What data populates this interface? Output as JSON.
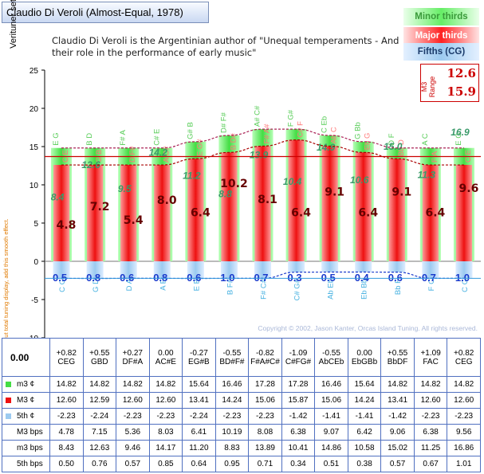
{
  "title": "Claudio Di Veroli (Almost-Equal, 1978)",
  "subtitle": "Claudio Di Veroli is the Argentinian author of \"Unequal temperaments - And their role in the performance of early music\"",
  "legend": {
    "minor": "Minor thirds",
    "major": "Major thirds",
    "fifths": "Fifths (CG)"
  },
  "range_box": {
    "label": "M3 Range",
    "v1": "12.6",
    "v2": "15.9"
  },
  "copyright": "Copyright © 2002, Jason Kanter, Orcas Island Tuning. All rights reserved.",
  "side_note": "<-- To zoom out total tuning display, add this smooth effect.",
  "total_value": "0.00",
  "colors": {
    "minor": "#44dd44",
    "major": "#ee1111",
    "fifths": "#9ccaf0",
    "refline": "#cc0000",
    "fifths_line": "#3399dd"
  },
  "chart_data": {
    "type": "bar",
    "ylabel": "Verituner set",
    "ylim": [
      -10,
      25
    ],
    "yticks": [
      -10,
      -5,
      0,
      5,
      10,
      15,
      20,
      25
    ],
    "reference_line": 13.7,
    "m3_triad_labels": [
      "E G",
      "B D",
      "F# A",
      "C# E",
      "G# B",
      "D# F#",
      "A# C#",
      "F G#",
      "C Eb",
      "G Bb",
      "D F",
      "A C",
      "E G"
    ],
    "M3_triad_labels": [
      "C E",
      "G B",
      "D F#",
      "A C#",
      "E G#",
      "B D#",
      "F# A#",
      "C# F",
      "Ab C",
      "Eb G",
      "Bb D",
      "F A",
      "C E"
    ],
    "fifth_labels": [
      "C G",
      "G D",
      "D A",
      "A E",
      "E B",
      "B F#",
      "F# C#",
      "C# G#",
      "Ab Eb",
      "Eb Bb",
      "Bb F",
      "F C",
      "C G"
    ],
    "series": [
      {
        "name": "m3 ¢",
        "values": [
          14.82,
          14.82,
          14.82,
          14.82,
          15.64,
          16.46,
          17.28,
          17.28,
          16.46,
          15.64,
          14.82,
          14.82,
          14.82
        ]
      },
      {
        "name": "M3 ¢",
        "values": [
          12.6,
          12.59,
          12.6,
          12.6,
          13.41,
          14.24,
          15.06,
          15.87,
          15.06,
          14.24,
          13.41,
          12.6,
          12.6
        ]
      },
      {
        "name": "5th ¢",
        "values": [
          -2.23,
          -2.24,
          -2.23,
          -2.23,
          -2.24,
          -2.23,
          -2.23,
          -1.42,
          -1.41,
          -1.41,
          -1.42,
          -2.23,
          -2.23
        ]
      }
    ],
    "m3_bar_labels": [
      "8.4",
      "12.6",
      "9.5",
      "14.2",
      "11.2",
      "8.8",
      "13.9",
      "10.4",
      "14.9",
      "10.6",
      "15.0",
      "11.3",
      "16.9"
    ],
    "M3_bar_labels": [
      "4.8",
      "7.2",
      "5.4",
      "8.0",
      "6.4",
      "10.2",
      "8.1",
      "6.4",
      "9.1",
      "6.4",
      "9.1",
      "6.4",
      "9.6"
    ],
    "fifth_bar_labels": [
      "0.5",
      "0.8",
      "0.6",
      "0.8",
      "0.6",
      "1.0",
      "0.7",
      "0.3",
      "0.5",
      "0.4",
      "0.6",
      "0.7",
      "1.0"
    ]
  },
  "table": {
    "header_row": [
      {
        "offset": "+0.82",
        "name": "CEG"
      },
      {
        "offset": "+0.55",
        "name": "GBD"
      },
      {
        "offset": "+0.27",
        "name": "DF#A"
      },
      {
        "offset": "0.00",
        "name": "AC#E"
      },
      {
        "offset": "-0.27",
        "name": "EG#B"
      },
      {
        "offset": "-0.55",
        "name": "BD#F#"
      },
      {
        "offset": "-0.82",
        "name": "F#A#C#"
      },
      {
        "offset": "-1.09",
        "name": "C#FG#"
      },
      {
        "offset": "-0.55",
        "name": "AbCEb"
      },
      {
        "offset": "0.00",
        "name": "EbGBb"
      },
      {
        "offset": "+0.55",
        "name": "BbDF"
      },
      {
        "offset": "+1.09",
        "name": "FAC"
      },
      {
        "offset": "+0.82",
        "name": "CEG"
      }
    ],
    "rows": [
      {
        "label": "m3 ¢",
        "swatch": "#44dd44",
        "values": [
          "14.82",
          "14.82",
          "14.82",
          "14.82",
          "15.64",
          "16.46",
          "17.28",
          "17.28",
          "16.46",
          "15.64",
          "14.82",
          "14.82",
          "14.82"
        ]
      },
      {
        "label": "M3 ¢",
        "swatch": "#ee1111",
        "values": [
          "12.60",
          "12.59",
          "12.60",
          "12.60",
          "13.41",
          "14.24",
          "15.06",
          "15.87",
          "15.06",
          "14.24",
          "13.41",
          "12.60",
          "12.60"
        ]
      },
      {
        "label": "5th ¢",
        "swatch": "#9ccaf0",
        "values": [
          "-2.23",
          "-2.24",
          "-2.23",
          "-2.23",
          "-2.24",
          "-2.23",
          "-2.23",
          "-1.42",
          "-1.41",
          "-1.41",
          "-1.42",
          "-2.23",
          "-2.23"
        ]
      },
      {
        "label": "M3 bps",
        "swatch": "",
        "values": [
          "4.78",
          "7.15",
          "5.36",
          "8.03",
          "6.41",
          "10.19",
          "8.08",
          "6.38",
          "9.07",
          "6.42",
          "9.06",
          "6.38",
          "9.56"
        ]
      },
      {
        "label": "m3 bps",
        "swatch": "",
        "values": [
          "8.43",
          "12.63",
          "9.46",
          "14.17",
          "11.20",
          "8.83",
          "13.89",
          "10.41",
          "14.86",
          "10.58",
          "15.02",
          "11.25",
          "16.86"
        ]
      },
      {
        "label": "5th bps",
        "swatch": "",
        "values": [
          "0.50",
          "0.76",
          "0.57",
          "0.85",
          "0.64",
          "0.95",
          "0.71",
          "0.34",
          "0.51",
          "0.38",
          "0.57",
          "0.67",
          "1.01"
        ]
      }
    ]
  }
}
